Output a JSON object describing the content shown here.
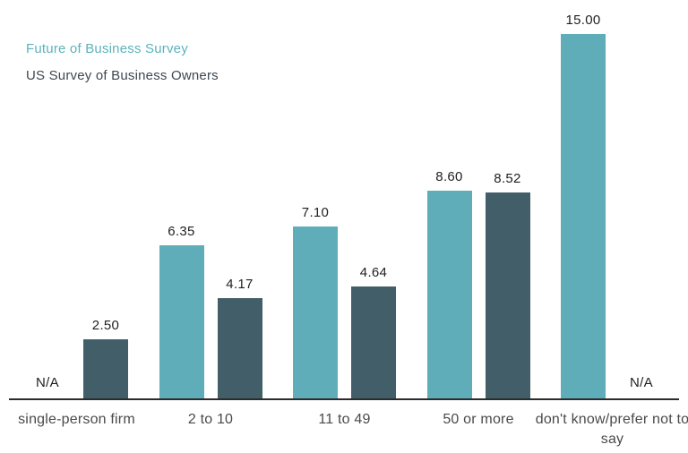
{
  "chart_data": {
    "type": "bar",
    "title": "",
    "xlabel": "",
    "ylabel": "",
    "ylim": [
      0,
      15
    ],
    "grid": false,
    "legend_position": "top-left",
    "axis_color": "#2b2b2b",
    "na_label": "N/A",
    "categories": [
      "single-person firm",
      "2 to 10",
      "11 to 49",
      "50 or more",
      "don't know/prefer not to say"
    ],
    "series": [
      {
        "name": "Future of Business Survey",
        "color": "#5fadb9",
        "legend_text_color": "#5bb3bc",
        "values": [
          null,
          6.35,
          7.1,
          8.6,
          15.0
        ],
        "labels": [
          "N/A",
          "6.35",
          "7.10",
          "8.60",
          "15.00"
        ]
      },
      {
        "name": "US Survey of Business Owners",
        "color": "#425f69",
        "legend_text_color": "#3d4852",
        "values": [
          2.5,
          4.17,
          4.64,
          8.52,
          null
        ],
        "labels": [
          "2.50",
          "4.17",
          "4.64",
          "8.52",
          "N/A"
        ]
      }
    ]
  }
}
